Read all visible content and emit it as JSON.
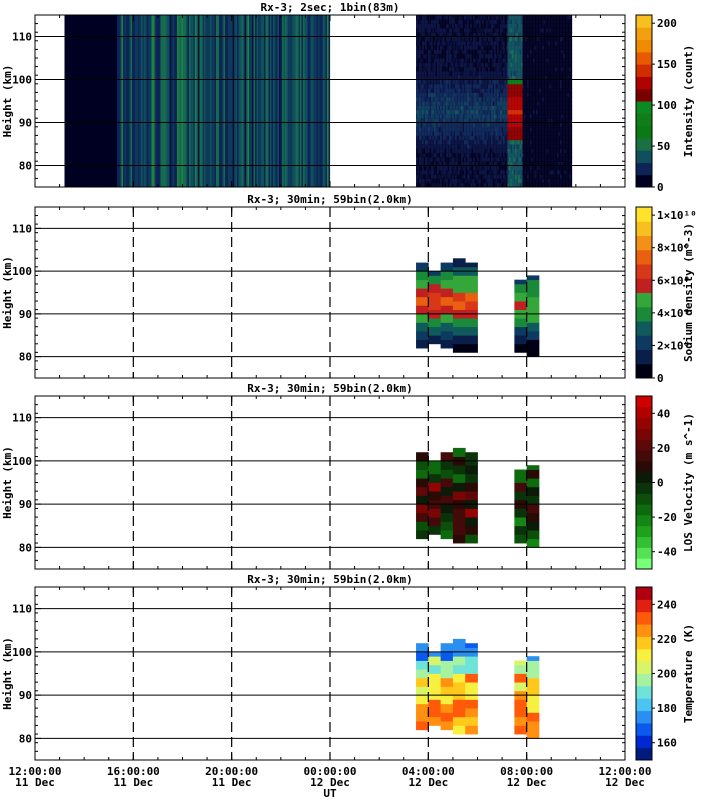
{
  "x_axis": {
    "label": "UT",
    "ticks": [
      {
        "time": "12:00:00",
        "date": "11 Dec",
        "hours": 0
      },
      {
        "time": "16:00:00",
        "date": "11 Dec",
        "hours": 4
      },
      {
        "time": "20:00:00",
        "date": "11 Dec",
        "hours": 8
      },
      {
        "time": "00:00:00",
        "date": "12 Dec",
        "hours": 12
      },
      {
        "time": "04:00:00",
        "date": "12 Dec",
        "hours": 16
      },
      {
        "time": "08:00:00",
        "date": "12 Dec",
        "hours": 20
      },
      {
        "time": "12:00:00",
        "date": "12 Dec",
        "hours": 24
      }
    ],
    "range_hours": [
      0,
      24
    ]
  },
  "chart_data": [
    {
      "type": "heatmap",
      "title": "Rx-3;  2sec; 1bin(83m)",
      "ylabel": "Height (km)",
      "ylim": [
        75,
        115
      ],
      "yticks": [
        80,
        90,
        100,
        110
      ],
      "colorbar": {
        "label": "Intensity (count)",
        "min": 0,
        "max": 210,
        "ticks": [
          "0",
          "50",
          "100",
          "150",
          "200"
        ],
        "tick_values": [
          0,
          50,
          100,
          150,
          200
        ]
      },
      "data_segments_hours": [
        [
          1.2,
          12.0
        ],
        [
          15.5,
          21.8
        ]
      ],
      "description_values": {
        "background_level": 10,
        "mid_level": 50,
        "peak_level": 110
      }
    },
    {
      "type": "heatmap",
      "title": "Rx-3; 30min; 59bin(2.0km)",
      "ylabel": "Height (km)",
      "ylim": [
        75,
        115
      ],
      "yticks": [
        80,
        90,
        100,
        110
      ],
      "colorbar": {
        "label": "Sodium density (m^-3)",
        "min": 0,
        "max": 10500000000.0,
        "ticks": [
          "0",
          "2×10⁹",
          "4×10⁹",
          "6×10⁹",
          "8×10⁹",
          "1×10¹⁰"
        ],
        "tick_values": [
          0,
          2000000000.0,
          4000000000.0,
          6000000000.0,
          8000000000.0,
          10000000000.0
        ]
      },
      "columns": [
        {
          "x_start": 15.5,
          "x_end": 16.0,
          "bottom": 82,
          "top": 102
        },
        {
          "x_start": 16.0,
          "x_end": 16.5,
          "bottom": 83,
          "top": 100
        },
        {
          "x_start": 16.5,
          "x_end": 17.0,
          "bottom": 82,
          "top": 102
        },
        {
          "x_start": 17.0,
          "x_end": 17.5,
          "bottom": 81,
          "top": 103
        },
        {
          "x_start": 17.5,
          "x_end": 18.0,
          "bottom": 81,
          "top": 102
        },
        {
          "x_start": 19.5,
          "x_end": 20.0,
          "bottom": 81,
          "top": 98
        },
        {
          "x_start": 20.0,
          "x_end": 20.5,
          "bottom": 80,
          "top": 99
        }
      ]
    },
    {
      "type": "heatmap",
      "title": "Rx-3; 30min; 59bin(2.0km)",
      "ylabel": "Height (km)",
      "ylim": [
        75,
        115
      ],
      "yticks": [
        80,
        90,
        100,
        110
      ],
      "colorbar": {
        "label": "LOS Velocity (m s^-1)",
        "min": -50,
        "max": 50,
        "ticks": [
          "-40",
          "-20",
          "0",
          "20",
          "40"
        ],
        "tick_values": [
          -40,
          -20,
          0,
          20,
          40
        ]
      },
      "columns": [
        {
          "x_start": 15.5,
          "x_end": 16.0,
          "bottom": 82,
          "top": 102
        },
        {
          "x_start": 16.0,
          "x_end": 16.5,
          "bottom": 83,
          "top": 100
        },
        {
          "x_start": 16.5,
          "x_end": 17.0,
          "bottom": 82,
          "top": 102
        },
        {
          "x_start": 17.0,
          "x_end": 17.5,
          "bottom": 81,
          "top": 103
        },
        {
          "x_start": 17.5,
          "x_end": 18.0,
          "bottom": 81,
          "top": 102
        },
        {
          "x_start": 19.5,
          "x_end": 20.0,
          "bottom": 81,
          "top": 98
        },
        {
          "x_start": 20.0,
          "x_end": 20.5,
          "bottom": 80,
          "top": 99
        }
      ]
    },
    {
      "type": "heatmap",
      "title": "Rx-3; 30min; 59bin(2.0km)",
      "ylabel": "Height (km)",
      "ylim": [
        75,
        115
      ],
      "yticks": [
        80,
        90,
        100,
        110
      ],
      "colorbar": {
        "label": "Temperature (K)",
        "min": 150,
        "max": 250,
        "ticks": [
          "160",
          "180",
          "200",
          "220",
          "240"
        ],
        "tick_values": [
          160,
          180,
          200,
          220,
          240
        ]
      },
      "columns": [
        {
          "x_start": 15.5,
          "x_end": 16.0,
          "bottom": 82,
          "top": 102
        },
        {
          "x_start": 16.0,
          "x_end": 16.5,
          "bottom": 83,
          "top": 100
        },
        {
          "x_start": 16.5,
          "x_end": 17.0,
          "bottom": 82,
          "top": 102
        },
        {
          "x_start": 17.0,
          "x_end": 17.5,
          "bottom": 81,
          "top": 103
        },
        {
          "x_start": 17.5,
          "x_end": 18.0,
          "bottom": 81,
          "top": 102
        },
        {
          "x_start": 19.5,
          "x_end": 20.0,
          "bottom": 81,
          "top": 98
        },
        {
          "x_start": 20.0,
          "x_end": 20.5,
          "bottom": 80,
          "top": 99
        }
      ]
    }
  ]
}
